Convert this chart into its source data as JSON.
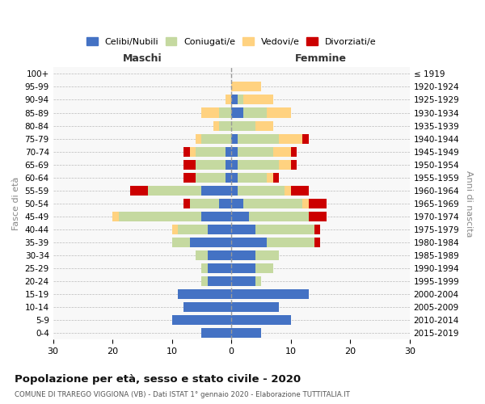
{
  "age_groups": [
    "100+",
    "95-99",
    "90-94",
    "85-89",
    "80-84",
    "75-79",
    "70-74",
    "65-69",
    "60-64",
    "55-59",
    "50-54",
    "45-49",
    "40-44",
    "35-39",
    "30-34",
    "25-29",
    "20-24",
    "15-19",
    "10-14",
    "5-9",
    "0-4"
  ],
  "birth_years": [
    "≤ 1919",
    "1920-1924",
    "1925-1929",
    "1930-1934",
    "1935-1939",
    "1940-1944",
    "1945-1949",
    "1950-1954",
    "1955-1959",
    "1960-1964",
    "1965-1969",
    "1970-1974",
    "1975-1979",
    "1980-1984",
    "1985-1989",
    "1990-1994",
    "1995-1999",
    "2000-2004",
    "2005-2009",
    "2010-2014",
    "2015-2019"
  ],
  "colors": {
    "celibi": "#4472C4",
    "coniugati": "#c5d9a0",
    "vedovi": "#FFD280",
    "divorziati": "#CC0000",
    "background": "#ffffff",
    "grid": "#bbbbbb",
    "dashed_line": "#999999"
  },
  "maschi": {
    "celibi": [
      0,
      0,
      0,
      0,
      0,
      0,
      1,
      1,
      1,
      5,
      2,
      5,
      4,
      7,
      4,
      4,
      4,
      9,
      8,
      10,
      5
    ],
    "coniugati": [
      0,
      0,
      0,
      2,
      2,
      5,
      5,
      5,
      5,
      9,
      5,
      14,
      5,
      3,
      2,
      1,
      1,
      0,
      0,
      0,
      0
    ],
    "vedovi": [
      0,
      0,
      1,
      3,
      1,
      1,
      1,
      0,
      0,
      0,
      0,
      1,
      1,
      0,
      0,
      0,
      0,
      0,
      0,
      0,
      0
    ],
    "divorziati": [
      0,
      0,
      0,
      0,
      0,
      0,
      1,
      2,
      2,
      3,
      1,
      0,
      0,
      0,
      0,
      0,
      0,
      0,
      0,
      0,
      0
    ]
  },
  "femmine": {
    "celibi": [
      0,
      0,
      1,
      2,
      0,
      1,
      1,
      1,
      1,
      1,
      2,
      3,
      4,
      6,
      4,
      4,
      4,
      13,
      8,
      10,
      5
    ],
    "coniugati": [
      0,
      0,
      1,
      4,
      4,
      7,
      6,
      7,
      5,
      8,
      10,
      10,
      10,
      8,
      4,
      3,
      1,
      0,
      0,
      0,
      0
    ],
    "vedovi": [
      0,
      5,
      5,
      4,
      3,
      4,
      3,
      2,
      1,
      1,
      1,
      0,
      0,
      0,
      0,
      0,
      0,
      0,
      0,
      0,
      0
    ],
    "divorziati": [
      0,
      0,
      0,
      0,
      0,
      1,
      1,
      1,
      1,
      3,
      3,
      3,
      1,
      1,
      0,
      0,
      0,
      0,
      0,
      0,
      0
    ]
  },
  "xlim": 30,
  "title": "Popolazione per età, sesso e stato civile - 2020",
  "subtitle": "COMUNE DI TRAREGO VIGGIONA (VB) - Dati ISTAT 1° gennaio 2020 - Elaborazione TUTTITALIA.IT",
  "ylabel_left": "Fasce di età",
  "ylabel_right": "Anni di nascita",
  "xlabel_maschi": "Maschi",
  "xlabel_femmine": "Femmine",
  "legend_labels": [
    "Celibi/Nubili",
    "Coniugati/e",
    "Vedovi/e",
    "Divorziati/e"
  ]
}
